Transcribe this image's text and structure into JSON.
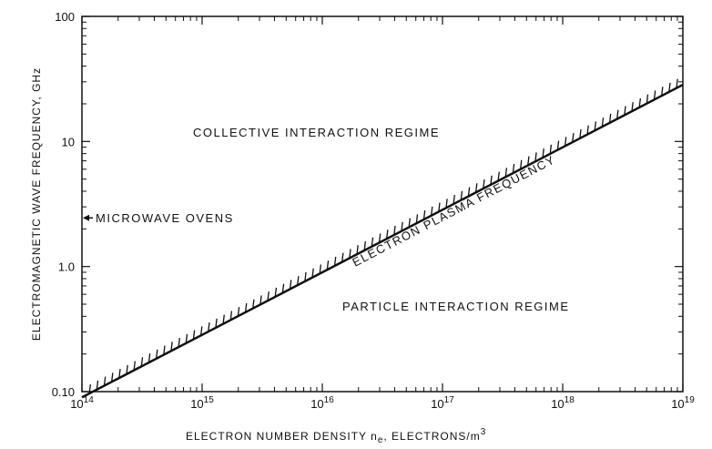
{
  "chart_data": {
    "type": "line",
    "title": "",
    "x_scale": "log",
    "y_scale": "log",
    "xlim": [
      100000000000000.0,
      1e+19
    ],
    "ylim": [
      0.1,
      100
    ],
    "grid": false,
    "xlabel": {
      "main": "ELECTRON NUMBER DENSITY n",
      "sub": "e",
      "rest": ", ELECTRONS/m",
      "sup": "3"
    },
    "ylabel": "ELECTROMAGNETIC WAVE FREQUENCY, GHz",
    "x_ticks": [
      {
        "value": 100000000000000.0,
        "base": "10",
        "exp": "14"
      },
      {
        "value": 1000000000000000.0,
        "base": "10",
        "exp": "15"
      },
      {
        "value": 1e+16,
        "base": "10",
        "exp": "16"
      },
      {
        "value": 1e+17,
        "base": "10",
        "exp": "17"
      },
      {
        "value": 1e+18,
        "base": "10",
        "exp": "18"
      },
      {
        "value": 1e+19,
        "base": "10",
        "exp": "19"
      }
    ],
    "y_ticks": [
      {
        "value": 0.1,
        "label": "0.10"
      },
      {
        "value": 1,
        "label": "1.0"
      },
      {
        "value": 10,
        "label": "10"
      },
      {
        "value": 100,
        "label": "100"
      }
    ],
    "series": [
      {
        "label": "ELECTRON PLASMA FREQUENCY",
        "x": [
          100000000000000.0,
          1e+19
        ],
        "y": [
          0.09,
          28.4
        ]
      }
    ],
    "regions": [
      {
        "label": "COLLECTIVE INTERACTION REGIME"
      },
      {
        "label": "PARTICLE INTERACTION REGIME"
      }
    ],
    "annotations": [
      {
        "label": "MICROWAVE OVENS",
        "y": 2.45
      }
    ]
  }
}
